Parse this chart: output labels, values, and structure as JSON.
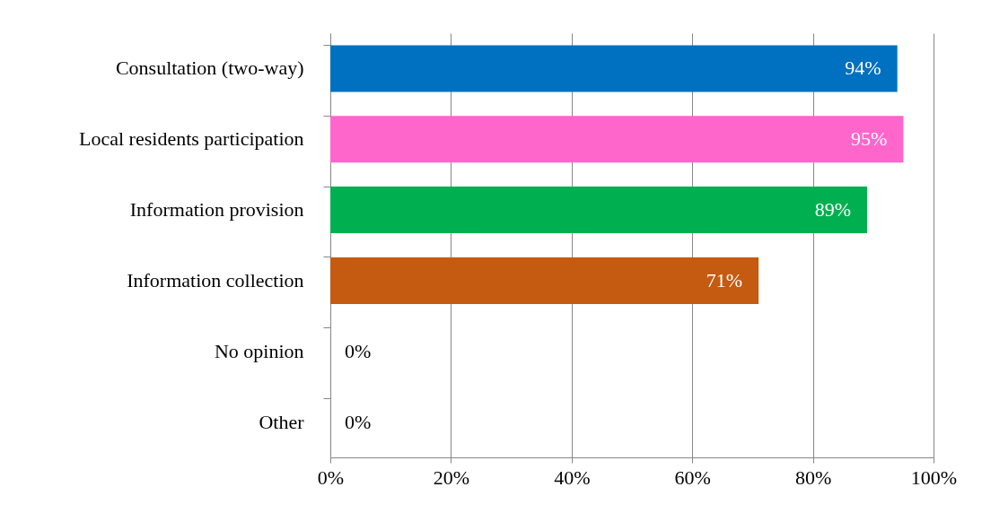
{
  "chart_data": {
    "type": "bar",
    "orientation": "horizontal",
    "categories": [
      "Consultation (two-way)",
      "Local residents participation",
      "Information provision",
      "Information collection",
      "No opinion",
      "Other"
    ],
    "values": [
      94,
      95,
      89,
      71,
      0,
      0
    ],
    "colors": [
      "#0070c0",
      "#ff66cc",
      "#00b050",
      "#c55a11",
      "#c55a11",
      "#c55a11"
    ],
    "value_labels": [
      "94%",
      "95%",
      "89%",
      "71%",
      "0%",
      "0%"
    ],
    "xlim": [
      0,
      100
    ],
    "xticks": [
      {
        "value": 0,
        "label": "0%"
      },
      {
        "value": 20,
        "label": "20%"
      },
      {
        "value": 40,
        "label": "40%"
      },
      {
        "value": 60,
        "label": "60%"
      },
      {
        "value": 80,
        "label": "80%"
      },
      {
        "value": 100,
        "label": "100%"
      }
    ],
    "grid": "x"
  }
}
